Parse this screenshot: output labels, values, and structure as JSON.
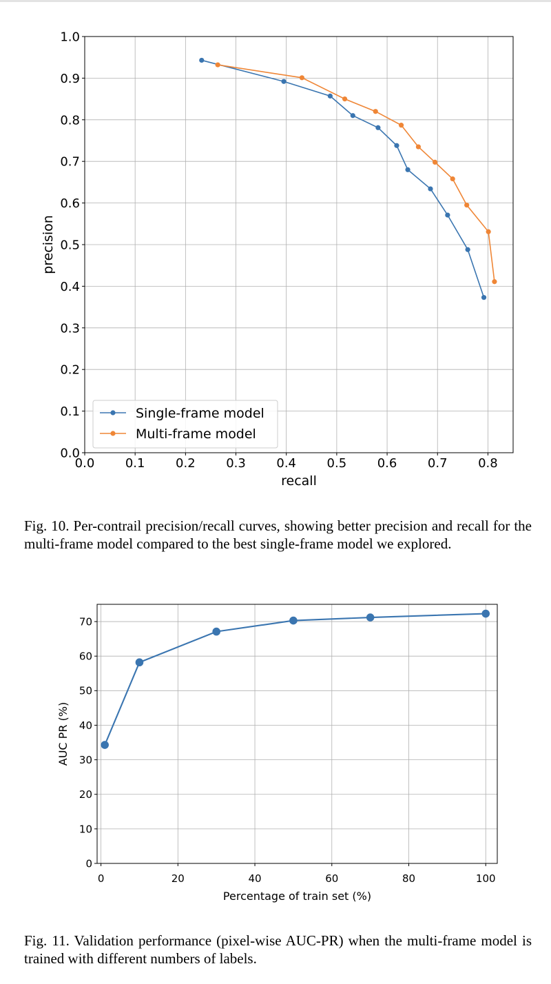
{
  "figures": [
    {
      "caption": "Fig. 10.  Per-contrail precision/recall curves, showing better precision and recall for the multi-frame model compared to the best single-frame model we explored.",
      "chart_data": {
        "type": "line",
        "title": "",
        "xlabel": "recall",
        "ylabel": "precision",
        "xlim": [
          0.0,
          0.85
        ],
        "ylim": [
          0.0,
          1.0
        ],
        "xticks": [
          "0.0",
          "0.1",
          "0.2",
          "0.3",
          "0.4",
          "0.5",
          "0.6",
          "0.7",
          "0.8"
        ],
        "yticks": [
          "0.0",
          "0.1",
          "0.2",
          "0.3",
          "0.4",
          "0.5",
          "0.6",
          "0.7",
          "0.8",
          "0.9",
          "1.0"
        ],
        "grid": true,
        "legend": "lower-left",
        "series": [
          {
            "name": "Single-frame model",
            "color": "#3a75b0",
            "x": [
              0.232,
              0.395,
              0.487,
              0.532,
              0.582,
              0.619,
              0.641,
              0.686,
              0.72,
              0.76,
              0.792
            ],
            "y": [
              0.943,
              0.892,
              0.857,
              0.81,
              0.781,
              0.738,
              0.68,
              0.634,
              0.571,
              0.488,
              0.373
            ]
          },
          {
            "name": "Multi-frame model",
            "color": "#ef8636",
            "x": [
              0.264,
              0.431,
              0.516,
              0.577,
              0.628,
              0.662,
              0.695,
              0.73,
              0.758,
              0.801,
              0.813
            ],
            "y": [
              0.932,
              0.901,
              0.85,
              0.82,
              0.787,
              0.735,
              0.698,
              0.658,
              0.595,
              0.531,
              0.411
            ]
          }
        ]
      }
    },
    {
      "caption": "Fig. 11.  Validation performance (pixel-wise AUC-PR) when the multi-frame model is trained with different numbers of labels.",
      "chart_data": {
        "type": "line",
        "title": "",
        "xlabel": "Percentage of train set (%)",
        "ylabel": "AUC PR (%)",
        "xlim": [
          -1,
          103
        ],
        "ylim": [
          0,
          75
        ],
        "xticks": [
          "0",
          "20",
          "40",
          "60",
          "80",
          "100"
        ],
        "yticks": [
          "0",
          "10",
          "20",
          "30",
          "40",
          "50",
          "60",
          "70"
        ],
        "grid": true,
        "series": [
          {
            "color": "#3a75b0",
            "x": [
              1,
              10,
              30,
              50,
              70,
              100
            ],
            "y": [
              34.3,
              58.2,
              67.1,
              70.3,
              71.2,
              72.3
            ]
          }
        ]
      }
    }
  ]
}
